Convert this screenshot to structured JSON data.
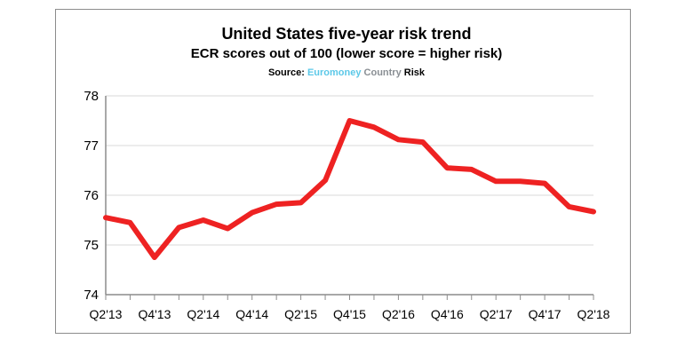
{
  "chart_data": {
    "type": "line",
    "title": "United States five-year risk trend",
    "subtitle": "ECR scores out of 100 (lower score = higher risk)",
    "source": {
      "prefix": "Source: ",
      "brand_part1": "Euromoney",
      "brand_part2": "Country",
      "brand_part3": "Risk"
    },
    "xlabel": "",
    "ylabel": "",
    "ylim": [
      74,
      78
    ],
    "yticks": [
      "74",
      "75",
      "76",
      "77",
      "78"
    ],
    "grid": true,
    "x": [
      "Q2'13",
      "Q3'13",
      "Q4'13",
      "Q1'14",
      "Q2'14",
      "Q3'14",
      "Q4'14",
      "Q1'15",
      "Q2'15",
      "Q3'15",
      "Q4'15",
      "Q1'16",
      "Q2'16",
      "Q3'16",
      "Q4'16",
      "Q1'17",
      "Q2'17",
      "Q3'17",
      "Q4'17",
      "Q1'18",
      "Q2'18"
    ],
    "xtick_labels": [
      "Q2'13",
      "Q4'13",
      "Q2'14",
      "Q4'14",
      "Q2'15",
      "Q4'15",
      "Q2'16",
      "Q4'16",
      "Q2'17",
      "Q4'17",
      "Q2'18"
    ],
    "series": [
      {
        "color": "#ee2222",
        "values": [
          75.55,
          75.45,
          74.75,
          75.35,
          75.5,
          75.33,
          75.65,
          75.82,
          75.85,
          76.3,
          77.5,
          77.37,
          77.12,
          77.07,
          76.55,
          76.52,
          76.28,
          76.28,
          76.24,
          75.77,
          75.67
        ]
      }
    ],
    "colors": {
      "line": "#ee2222",
      "grid": "#d9d9d9",
      "axis": "#8c8c8c",
      "brand_euromoney": "#5bc8e8",
      "brand_country": "#8a8f94"
    }
  }
}
